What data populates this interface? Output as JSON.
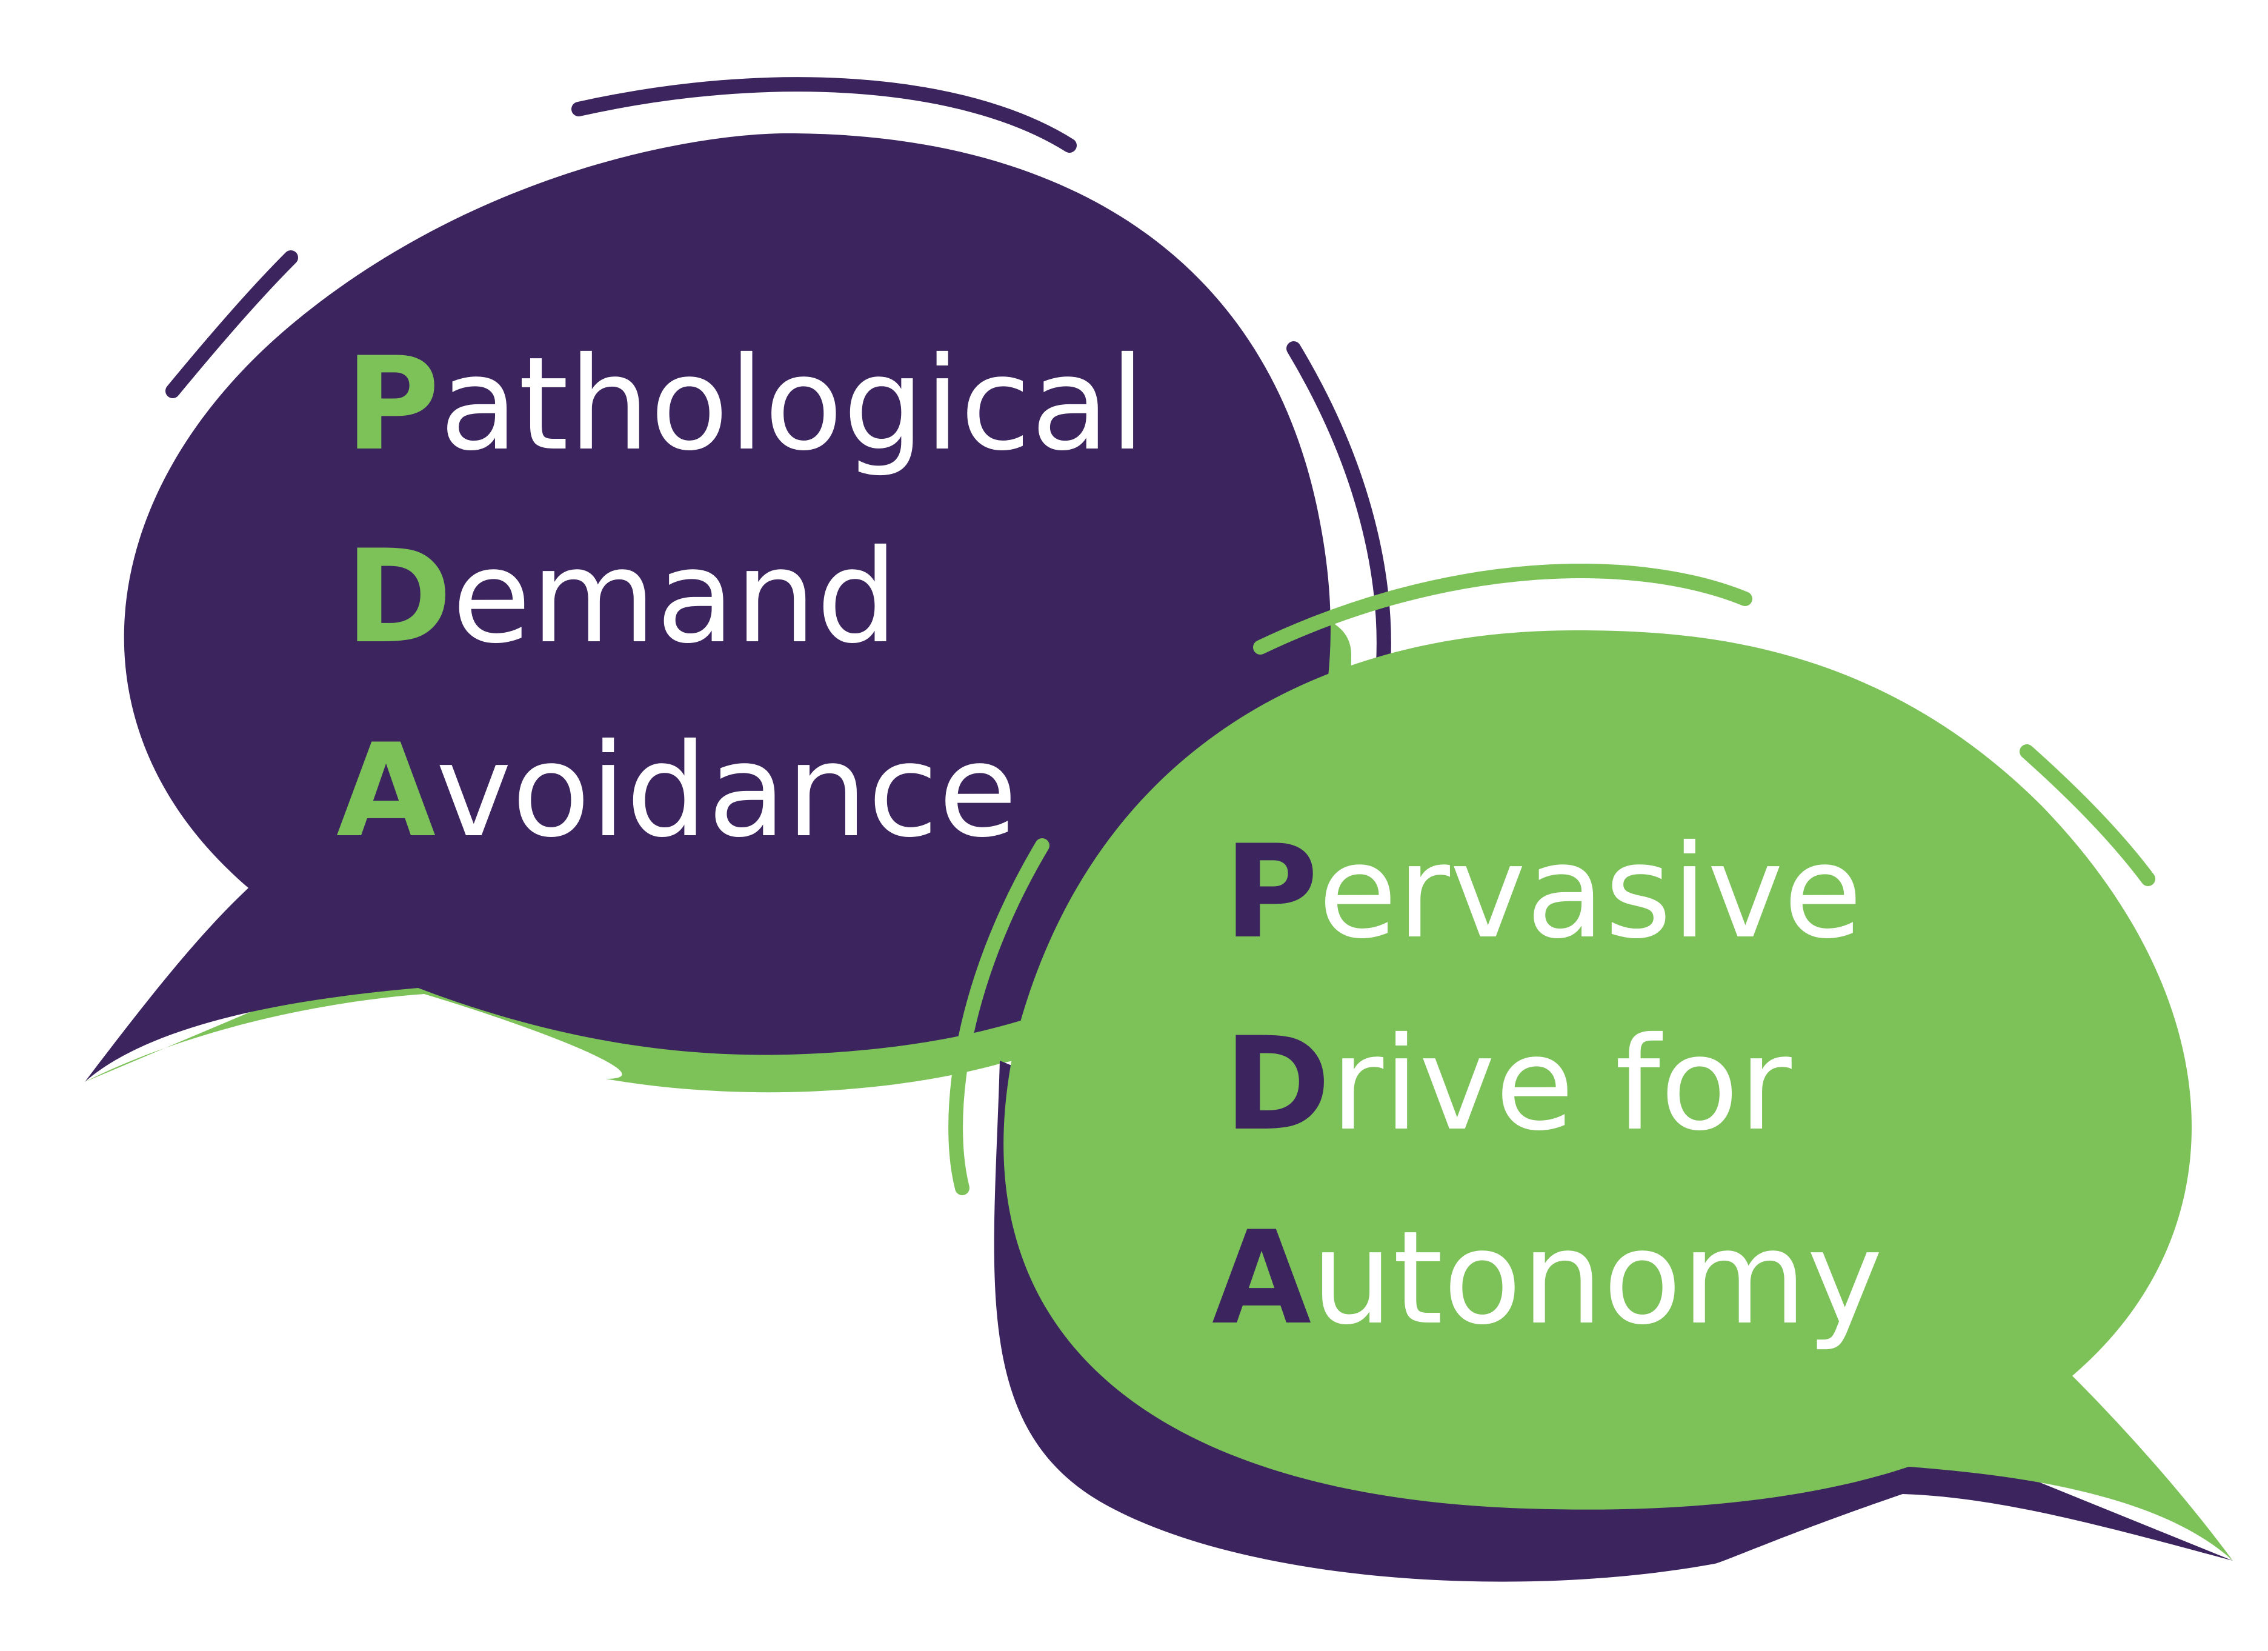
{
  "colors": {
    "purple": "#3c245e",
    "green": "#7dc259",
    "text_on_bubble": "#ffffff"
  },
  "left_bubble": {
    "lines": [
      {
        "initial": "P",
        "rest": "athological"
      },
      {
        "initial": "D",
        "rest": "emand"
      },
      {
        "initial": "A",
        "rest": "voidance"
      }
    ]
  },
  "right_bubble": {
    "lines": [
      {
        "initial": "P",
        "rest": "ervasive"
      },
      {
        "initial": "D",
        "rest": "rive for"
      },
      {
        "initial": "A",
        "rest": "utonomy"
      }
    ]
  }
}
